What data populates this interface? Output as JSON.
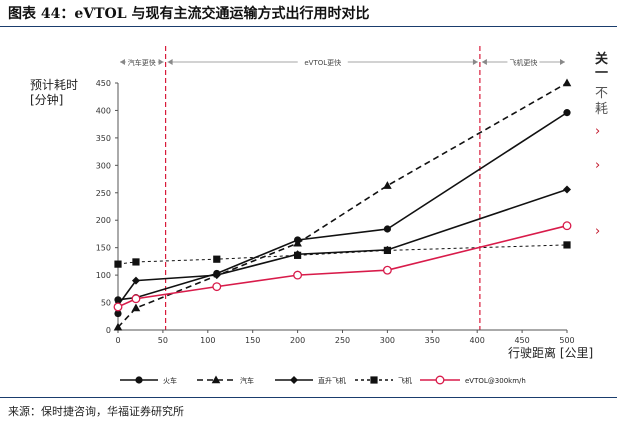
{
  "title": "图表 44：eVTOL 与现有主流交通运输方式出行用时对比",
  "source": "来源：保时捷咨询，华福证券研究所",
  "right_fragment": [
    "关",
    "一",
    "不",
    "耗",
    "›",
    "›",
    "›"
  ],
  "colors": {
    "black": "#111111",
    "pink": "#d81b4a",
    "region_line": "#d81b3a",
    "axis": "#555555",
    "rule": "#1a3d6d"
  },
  "chart_data": {
    "type": "line",
    "ylabel": "预计耗时\n[分钟]",
    "xlabel": "行驶距离 [公里]",
    "xlim": [
      0,
      500
    ],
    "ylim": [
      0,
      450
    ],
    "xticks": [
      0,
      50,
      100,
      150,
      200,
      250,
      300,
      350,
      400,
      450,
      500
    ],
    "yticks": [
      0,
      50,
      100,
      150,
      200,
      250,
      300,
      350,
      400,
      450
    ],
    "regions": [
      {
        "label": "汽车更快",
        "from": 0,
        "to": 53
      },
      {
        "label": "eVTOL更快",
        "from": 53,
        "to": 403
      },
      {
        "label": "飞机更快",
        "from": 403,
        "to": 500
      }
    ],
    "series": [
      {
        "name": "火车",
        "dash": "solid",
        "marker": "circle",
        "color": "#111111",
        "points": [
          [
            0,
            30
          ],
          [
            0,
            55
          ],
          [
            20,
            59
          ],
          [
            110,
            103
          ],
          [
            200,
            164
          ],
          [
            300,
            184
          ],
          [
            500,
            396
          ]
        ]
      },
      {
        "name": "汽车",
        "dash": "dashed",
        "marker": "triangle",
        "color": "#111111",
        "points": [
          [
            0,
            5
          ],
          [
            20,
            40
          ],
          [
            200,
            158
          ],
          [
            300,
            263
          ],
          [
            500,
            450
          ]
        ]
      },
      {
        "name": "直升飞机",
        "dash": "solid",
        "marker": "diamond",
        "color": "#111111",
        "points": [
          [
            0,
            45
          ],
          [
            20,
            90
          ],
          [
            110,
            100
          ],
          [
            200,
            138
          ],
          [
            300,
            146
          ],
          [
            500,
            256
          ]
        ]
      },
      {
        "name": "飞机",
        "dash": "short-dash",
        "marker": "square",
        "color": "#111111",
        "points": [
          [
            0,
            120
          ],
          [
            20,
            124
          ],
          [
            110,
            129
          ],
          [
            200,
            136
          ],
          [
            300,
            145
          ],
          [
            500,
            155
          ]
        ]
      },
      {
        "name": "eVTOL@300km/h",
        "dash": "solid",
        "marker": "open-circle",
        "color": "#d81b4a",
        "points": [
          [
            0,
            42
          ],
          [
            20,
            57
          ],
          [
            110,
            79
          ],
          [
            200,
            100
          ],
          [
            300,
            109
          ],
          [
            500,
            190
          ]
        ]
      }
    ]
  }
}
